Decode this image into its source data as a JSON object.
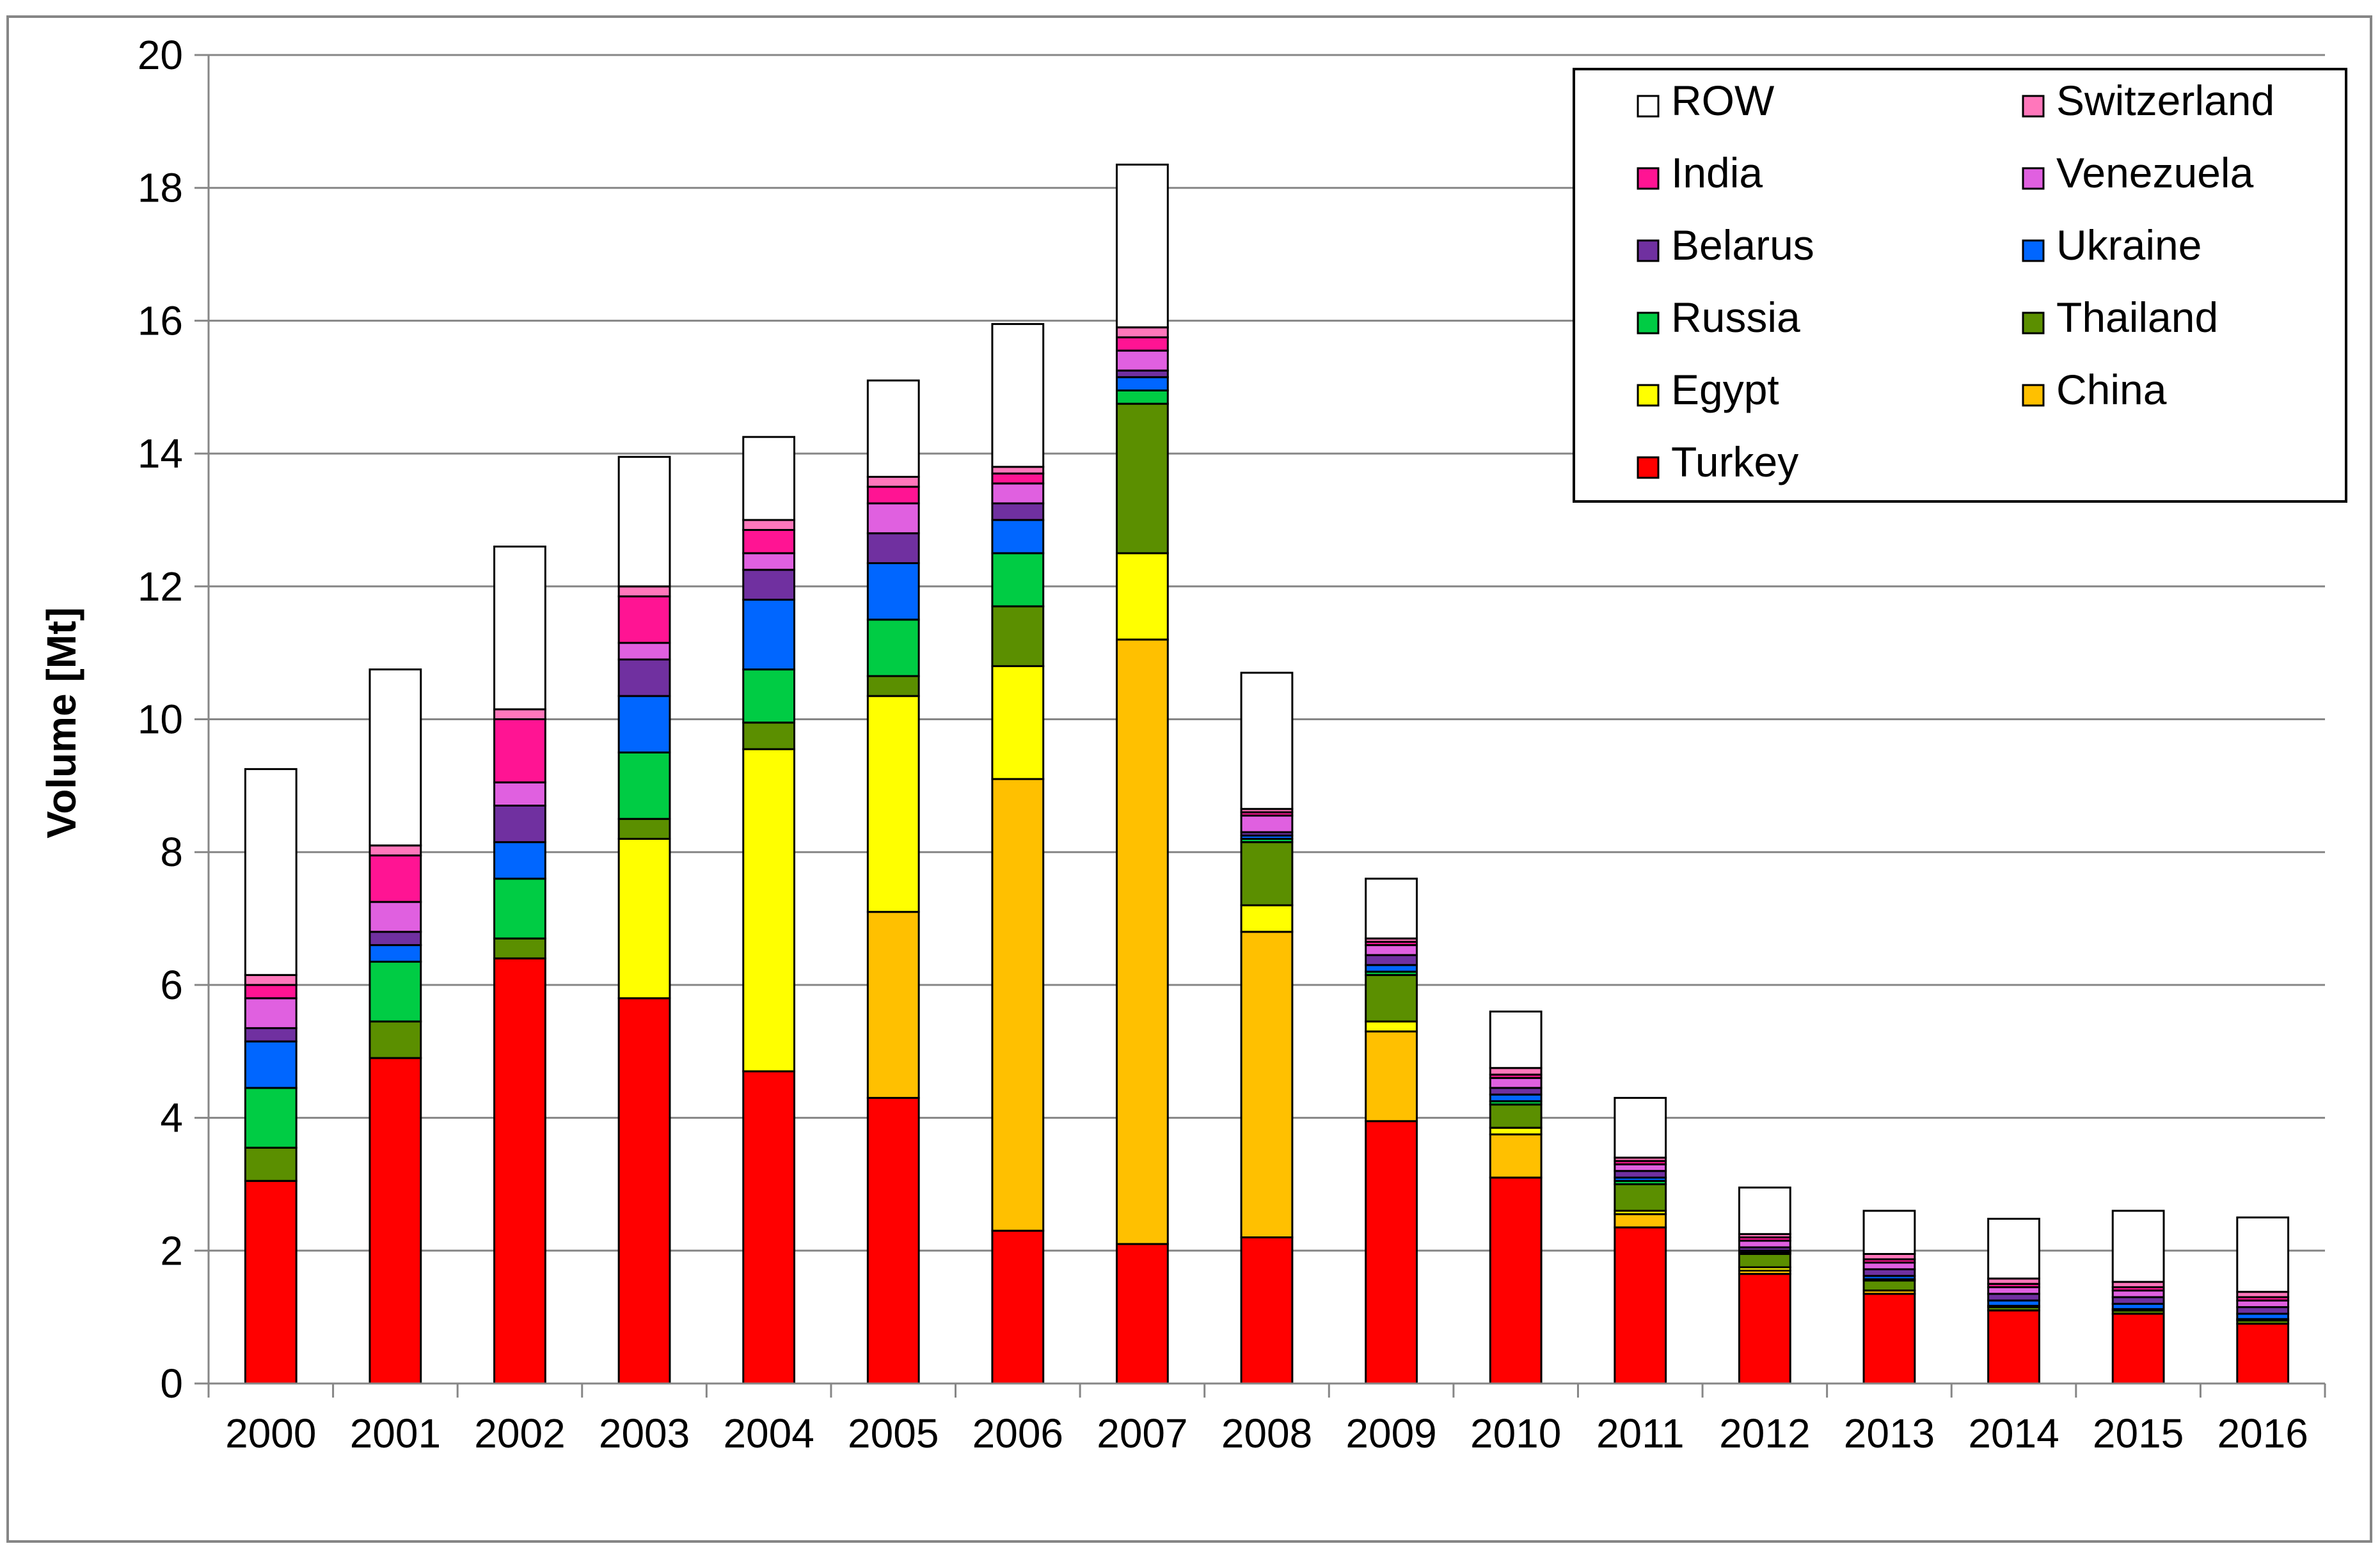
{
  "chart_data": {
    "type": "bar",
    "stacked": true,
    "title": "",
    "xlabel": "",
    "ylabel": "Volume [Mt]",
    "ylim": [
      0,
      20
    ],
    "yticks": [
      0,
      2,
      4,
      6,
      8,
      10,
      12,
      14,
      16,
      18,
      20
    ],
    "grid": true,
    "legend_position": "top-right",
    "categories": [
      "2000",
      "2001",
      "2002",
      "2003",
      "2004",
      "2005",
      "2006",
      "2007",
      "2008",
      "2009",
      "2010",
      "2011",
      "2012",
      "2013",
      "2014",
      "2015",
      "2016"
    ],
    "series": [
      {
        "name": "Turkey",
        "color": "#FF0000",
        "values": [
          3.05,
          4.9,
          6.4,
          5.8,
          4.7,
          4.3,
          2.3,
          2.1,
          2.2,
          3.95,
          3.1,
          2.35,
          1.65,
          1.35,
          1.1,
          1.05,
          0.9
        ]
      },
      {
        "name": "China",
        "color": "#FFC000",
        "values": [
          0.0,
          0.0,
          0.0,
          0.0,
          0.0,
          2.8,
          6.8,
          9.1,
          4.6,
          1.35,
          0.65,
          0.2,
          0.05,
          0.05,
          0.0,
          0.0,
          0.0
        ]
      },
      {
        "name": "Egypt",
        "color": "#FFFF00",
        "values": [
          0.0,
          0.0,
          0.0,
          2.4,
          4.85,
          3.25,
          1.7,
          1.3,
          0.4,
          0.15,
          0.1,
          0.05,
          0.05,
          0.0,
          0.0,
          0.0,
          0.0
        ]
      },
      {
        "name": "Thailand",
        "color": "#5B8F00",
        "values": [
          0.5,
          0.55,
          0.3,
          0.3,
          0.4,
          0.3,
          0.9,
          2.25,
          0.95,
          0.7,
          0.35,
          0.4,
          0.2,
          0.15,
          0.05,
          0.05,
          0.05
        ]
      },
      {
        "name": "Russia",
        "color": "#00CC44",
        "values": [
          0.9,
          0.9,
          0.9,
          1.0,
          0.8,
          0.85,
          0.8,
          0.2,
          0.05,
          0.05,
          0.05,
          0.05,
          0.02,
          0.02,
          0.02,
          0.02,
          0.02
        ]
      },
      {
        "name": "Ukraine",
        "color": "#0066FF",
        "values": [
          0.7,
          0.25,
          0.55,
          0.85,
          1.05,
          0.85,
          0.5,
          0.2,
          0.05,
          0.1,
          0.1,
          0.05,
          0.03,
          0.05,
          0.08,
          0.08,
          0.08
        ]
      },
      {
        "name": "Belarus",
        "color": "#7030A0",
        "values": [
          0.2,
          0.2,
          0.55,
          0.55,
          0.45,
          0.45,
          0.25,
          0.1,
          0.05,
          0.15,
          0.1,
          0.1,
          0.05,
          0.1,
          0.1,
          0.1,
          0.1
        ]
      },
      {
        "name": "Venezuela",
        "color": "#E060E0",
        "values": [
          0.45,
          0.45,
          0.35,
          0.25,
          0.25,
          0.45,
          0.3,
          0.3,
          0.25,
          0.15,
          0.15,
          0.1,
          0.1,
          0.1,
          0.1,
          0.1,
          0.1
        ]
      },
      {
        "name": "India",
        "color": "#FF1493",
        "values": [
          0.2,
          0.7,
          0.95,
          0.7,
          0.35,
          0.25,
          0.15,
          0.2,
          0.05,
          0.05,
          0.05,
          0.05,
          0.05,
          0.05,
          0.05,
          0.05,
          0.05
        ]
      },
      {
        "name": "Switzerland",
        "color": "#FF77BB",
        "values": [
          0.15,
          0.15,
          0.15,
          0.15,
          0.15,
          0.15,
          0.1,
          0.15,
          0.05,
          0.05,
          0.1,
          0.05,
          0.05,
          0.08,
          0.08,
          0.08,
          0.08
        ]
      },
      {
        "name": "ROW",
        "color": "#FFFFFF",
        "values": [
          3.1,
          2.65,
          2.45,
          1.95,
          1.25,
          1.45,
          2.15,
          2.45,
          2.05,
          0.9,
          0.85,
          0.9,
          0.7,
          0.65,
          0.9,
          1.07,
          1.12
        ]
      }
    ],
    "legend_order": [
      "ROW",
      "Switzerland",
      "India",
      "Venezuela",
      "Belarus",
      "Ukraine",
      "Russia",
      "Thailand",
      "Egypt",
      "China",
      "Turkey"
    ]
  }
}
